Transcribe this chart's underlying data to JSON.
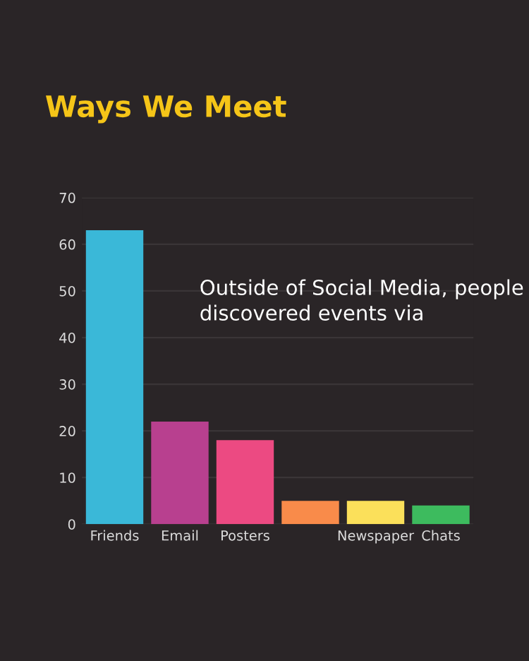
{
  "chart_data": {
    "type": "bar",
    "title": "Ways We Meet",
    "categories": [
      "Friends",
      "Email",
      "Posters",
      null,
      "Newspaper",
      "Chats"
    ],
    "values": [
      63,
      22,
      18,
      5,
      5,
      4
    ],
    "colors": [
      "#3ab8d8",
      "#b8408f",
      "#ec4a82",
      "#f98b4a",
      "#fbe05a",
      "#3dbb5e"
    ],
    "ylim": [
      0,
      70
    ],
    "yticks": [
      0,
      10,
      20,
      30,
      40,
      50,
      60,
      70
    ],
    "grid": "y",
    "annotations": [
      "Outside of Social Media, people discovered events via"
    ]
  }
}
